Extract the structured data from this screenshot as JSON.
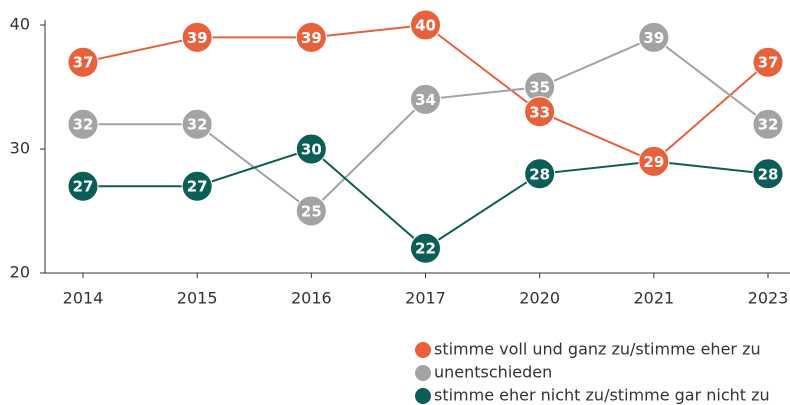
{
  "chart_data": {
    "type": "line",
    "categories": [
      "2014",
      "2015",
      "2016",
      "2017",
      "2020",
      "2021",
      "2023"
    ],
    "series": [
      {
        "name": "stimme voll und ganz zu/stimme eher zu",
        "color": "#e8603c",
        "values": [
          37,
          39,
          39,
          40,
          33,
          29,
          37
        ]
      },
      {
        "name": "unentschieden",
        "color": "#a3a3a3",
        "values": [
          32,
          32,
          25,
          34,
          35,
          39,
          32
        ]
      },
      {
        "name": "stimme eher nicht zu/stimme gar nicht zu",
        "color": "#0b5e55",
        "values": [
          27,
          27,
          30,
          22,
          28,
          29,
          28
        ]
      }
    ],
    "ylim": [
      20,
      40
    ],
    "yticks": [
      20,
      30,
      40
    ],
    "grid": false,
    "legend": "bottom-right"
  }
}
